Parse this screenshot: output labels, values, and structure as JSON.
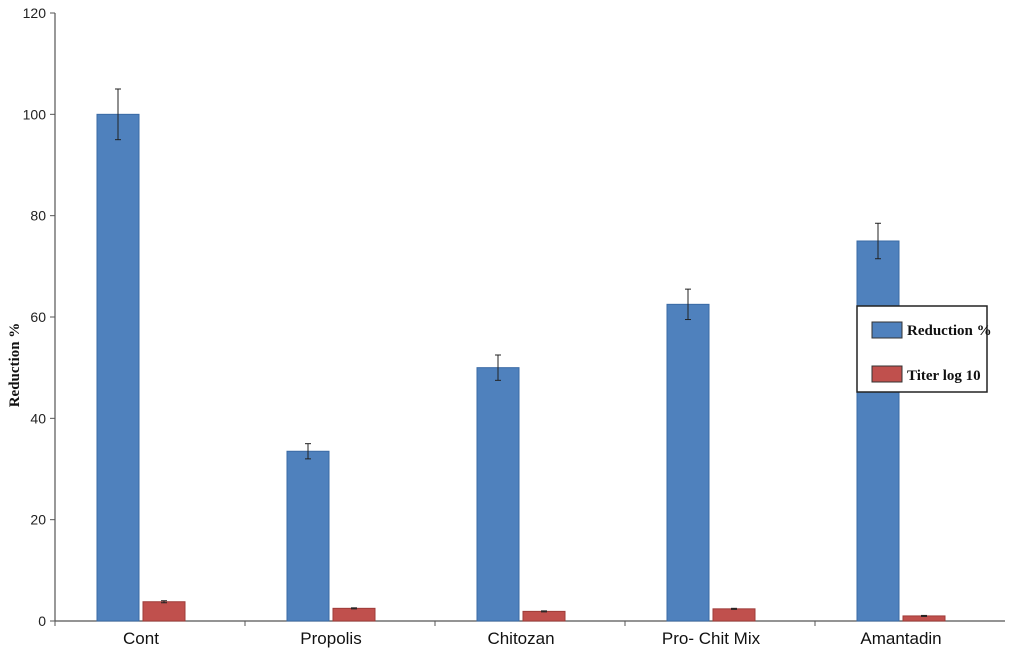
{
  "chart_data": {
    "type": "bar",
    "title": "",
    "xlabel": "",
    "ylabel": "Reduction %",
    "ylim": [
      0,
      120
    ],
    "yticks": [
      0,
      20,
      40,
      60,
      80,
      100,
      120
    ],
    "grid": false,
    "legend_position": "right",
    "categories": [
      "Cont",
      "Propolis",
      "Chitozan",
      "Pro- Chit Mix",
      "Amantadin"
    ],
    "series": [
      {
        "name": "Reduction %",
        "color": "#4f81bd",
        "values": [
          100,
          33.5,
          50,
          62.5,
          75
        ],
        "errors": [
          5,
          1.5,
          2.5,
          3,
          3.5
        ]
      },
      {
        "name": "Titer log 10",
        "color": "#c0504d",
        "values": [
          3.8,
          2.5,
          1.9,
          2.4,
          1.0
        ],
        "errors": [
          0.2,
          0.1,
          0.1,
          0.1,
          0.1
        ]
      }
    ]
  }
}
